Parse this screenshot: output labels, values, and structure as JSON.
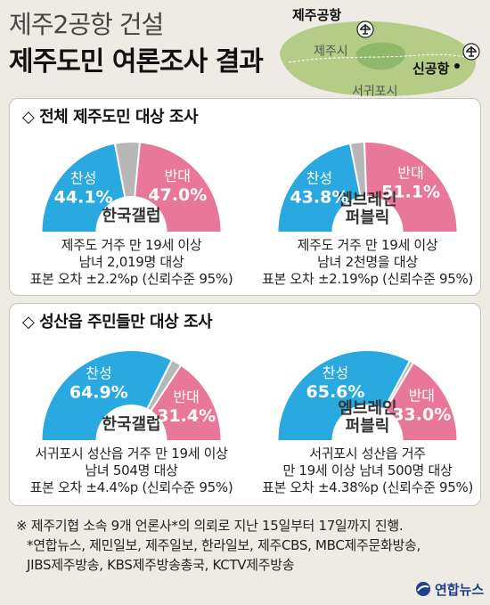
{
  "header": {
    "title_line1": "제주2공항 건설",
    "title_line2": "제주도민 여론조사 결과"
  },
  "map": {
    "airport_label": "제주공항",
    "jeju_city": "제주시",
    "new_airport_label": "신공항",
    "seogwipo_city": "서귀포시",
    "land_color": "#b5cc87",
    "highland_color": "#8fb86a"
  },
  "sections": [
    {
      "title": "◇ 전체 제주도민 대상 조사",
      "charts": [
        {
          "pollster": [
            "한국갤럽"
          ],
          "note_lines": [
            "제주도 거주 만 19세 이상",
            "남녀 2,019명 대상",
            "표본 오차 ±2.2%p (신뢰수준 95%)"
          ]
        },
        {
          "pollster": [
            "엠브레인",
            "퍼블릭"
          ],
          "note_lines": [
            "제주도 거주 만 19세 이상",
            "남녀 2천명을 대상",
            "표본 오차 ±2.19%p (신뢰수준 95%)"
          ]
        }
      ]
    },
    {
      "title": "◇ 성산읍 주민들만 대상 조사",
      "charts": [
        {
          "pollster": [
            "한국갤럽"
          ],
          "note_lines": [
            "서귀포시 성산읍 거주 만 19세 이상",
            "남녀 504명 대상",
            "표본 오차 ±4.4%p (신뢰수준 95%)"
          ]
        },
        {
          "pollster": [
            "엠브레인",
            "퍼블릭"
          ],
          "note_lines": [
            "서귀포시 성산읍 거주",
            "만 19세 이상 남녀 500명 대상",
            "표본 오차 ±4.38%p (신뢰수준 95%)"
          ]
        }
      ]
    }
  ],
  "chart_data": [
    {
      "type": "pie",
      "subtitle": "한국갤럽",
      "categories": [
        "찬성",
        "반대"
      ],
      "values": [
        44.1,
        47.0
      ],
      "value_labels": [
        "44.1%",
        "47.0%"
      ],
      "colors": [
        "#2aa9e0",
        "#e8779a",
        "#b7b7b7"
      ]
    },
    {
      "type": "pie",
      "subtitle": "엠브레인 퍼블릭",
      "categories": [
        "찬성",
        "반대"
      ],
      "values": [
        43.8,
        51.1
      ],
      "value_labels": [
        "43.8%",
        "51.1%"
      ],
      "colors": [
        "#2aa9e0",
        "#e8779a",
        "#b7b7b7"
      ]
    },
    {
      "type": "pie",
      "subtitle": "한국갤럽",
      "categories": [
        "찬성",
        "반대"
      ],
      "values": [
        64.9,
        31.4
      ],
      "value_labels": [
        "64.9%",
        "31.4%"
      ],
      "colors": [
        "#2aa9e0",
        "#e8779a",
        "#b7b7b7"
      ]
    },
    {
      "type": "pie",
      "subtitle": "엠브레인 퍼블릭",
      "categories": [
        "찬성",
        "반대"
      ],
      "values": [
        65.6,
        33.0
      ],
      "value_labels": [
        "65.6%",
        "33.0%"
      ],
      "colors": [
        "#2aa9e0",
        "#e8779a",
        "#b7b7b7"
      ]
    }
  ],
  "footnotes": [
    "※ 제주기협 소속 9개 언론사*의 의뢰로 지난 15일부터 17일까지 진행.",
    "*연합뉴스, 제민일보, 제주일보, 한라일보, 제주CBS, MBC제주문화방송,",
    "JIBS제주방송, KBS제주방송총국, KCTV제주방송"
  ],
  "logo": {
    "text": "연합뉴스"
  }
}
